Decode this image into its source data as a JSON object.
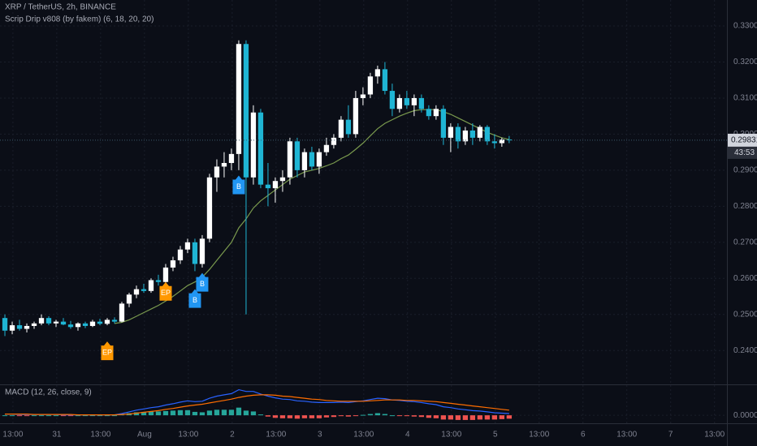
{
  "chart_data": {
    "type": "candlestick",
    "title": "XRP / TetherUS, 2h, BINANCE",
    "indicator": "Scrip Drip v808 (by fakem) (6, 18, 20, 20)",
    "up_color": "#ffffff",
    "down_color": "#1fb5d4",
    "ma_color": "#7a9a4e",
    "xlim": [
      -0.67,
      98.8
    ],
    "xticks": [
      {
        "value": 1.1,
        "label": "13:00"
      },
      {
        "value": 7.1,
        "label": "31"
      },
      {
        "value": 13.1,
        "label": "13:00"
      },
      {
        "value": 19.1,
        "label": "Aug"
      },
      {
        "value": 25.1,
        "label": "13:00"
      },
      {
        "value": 31.1,
        "label": "2"
      },
      {
        "value": 37.1,
        "label": "13:00"
      },
      {
        "value": 43.1,
        "label": "3"
      },
      {
        "value": 49.1,
        "label": "13:00"
      },
      {
        "value": 55.1,
        "label": "4"
      },
      {
        "value": 61.1,
        "label": "13:00"
      },
      {
        "value": 67.1,
        "label": "5"
      },
      {
        "value": 73.1,
        "label": "13:00"
      },
      {
        "value": 79.1,
        "label": "6"
      },
      {
        "value": 85.1,
        "label": "13:00"
      },
      {
        "value": 91.1,
        "label": "7"
      },
      {
        "value": 97.1,
        "label": "13:00"
      }
    ],
    "ylim": [
      0.2315,
      0.3372
    ],
    "yticks": [
      {
        "value": 0.24,
        "label": "0.24000"
      },
      {
        "value": 0.25,
        "label": "0.25000"
      },
      {
        "value": 0.26,
        "label": "0.26000"
      },
      {
        "value": 0.27,
        "label": "0.27000"
      },
      {
        "value": 0.28,
        "label": "0.28000"
      },
      {
        "value": 0.29,
        "label": "0.29000"
      },
      {
        "value": 0.3,
        "label": "0.30000"
      },
      {
        "value": 0.31,
        "label": "0.31000"
      },
      {
        "value": 0.32,
        "label": "0.32000"
      },
      {
        "value": 0.33,
        "label": "0.33000"
      }
    ],
    "ohlc": [
      [
        0.249,
        0.25,
        0.244,
        0.2455
      ],
      [
        0.2455,
        0.248,
        0.2445,
        0.247
      ],
      [
        0.247,
        0.2485,
        0.2455,
        0.246
      ],
      [
        0.246,
        0.2475,
        0.245,
        0.2468
      ],
      [
        0.2468,
        0.248,
        0.246,
        0.2475
      ],
      [
        0.2475,
        0.25,
        0.247,
        0.249
      ],
      [
        0.249,
        0.2495,
        0.247,
        0.2475
      ],
      [
        0.2475,
        0.2485,
        0.2465,
        0.248
      ],
      [
        0.248,
        0.249,
        0.247,
        0.2472
      ],
      [
        0.2472,
        0.2482,
        0.246,
        0.2465
      ],
      [
        0.2465,
        0.2478,
        0.2455,
        0.2475
      ],
      [
        0.2475,
        0.248,
        0.2462,
        0.2468
      ],
      [
        0.2468,
        0.2485,
        0.2465,
        0.248
      ],
      [
        0.248,
        0.2488,
        0.247,
        0.2474
      ],
      [
        0.2474,
        0.249,
        0.247,
        0.2485
      ],
      [
        0.2485,
        0.2492,
        0.2475,
        0.248
      ],
      [
        0.248,
        0.2535,
        0.2478,
        0.253
      ],
      [
        0.253,
        0.256,
        0.252,
        0.2555
      ],
      [
        0.2555,
        0.258,
        0.2545,
        0.257
      ],
      [
        0.257,
        0.2585,
        0.256,
        0.2565
      ],
      [
        0.2565,
        0.26,
        0.256,
        0.2595
      ],
      [
        0.2595,
        0.261,
        0.258,
        0.259
      ],
      [
        0.259,
        0.264,
        0.2585,
        0.263
      ],
      [
        0.263,
        0.266,
        0.262,
        0.265
      ],
      [
        0.265,
        0.269,
        0.264,
        0.268
      ],
      [
        0.268,
        0.271,
        0.267,
        0.27
      ],
      [
        0.27,
        0.271,
        0.262,
        0.264
      ],
      [
        0.264,
        0.272,
        0.263,
        0.271
      ],
      [
        0.271,
        0.289,
        0.27,
        0.288
      ],
      [
        0.288,
        0.293,
        0.284,
        0.291
      ],
      [
        0.291,
        0.295,
        0.288,
        0.292
      ],
      [
        0.292,
        0.296,
        0.29,
        0.2945
      ],
      [
        0.2945,
        0.326,
        0.29,
        0.325
      ],
      [
        0.325,
        0.326,
        0.25,
        0.288
      ],
      [
        0.288,
        0.308,
        0.286,
        0.306
      ],
      [
        0.306,
        0.307,
        0.285,
        0.286
      ],
      [
        0.286,
        0.292,
        0.28,
        0.285
      ],
      [
        0.285,
        0.288,
        0.281,
        0.287
      ],
      [
        0.287,
        0.29,
        0.284,
        0.288
      ],
      [
        0.288,
        0.299,
        0.286,
        0.298
      ],
      [
        0.298,
        0.299,
        0.288,
        0.29
      ],
      [
        0.29,
        0.296,
        0.288,
        0.295
      ],
      [
        0.295,
        0.2965,
        0.29,
        0.291
      ],
      [
        0.291,
        0.296,
        0.289,
        0.295
      ],
      [
        0.295,
        0.299,
        0.294,
        0.297
      ],
      [
        0.297,
        0.3,
        0.296,
        0.299
      ],
      [
        0.299,
        0.305,
        0.298,
        0.304
      ],
      [
        0.304,
        0.308,
        0.299,
        0.3
      ],
      [
        0.3,
        0.312,
        0.299,
        0.31
      ],
      [
        0.31,
        0.313,
        0.308,
        0.311
      ],
      [
        0.311,
        0.317,
        0.31,
        0.316
      ],
      [
        0.316,
        0.319,
        0.314,
        0.318
      ],
      [
        0.318,
        0.32,
        0.311,
        0.312
      ],
      [
        0.312,
        0.314,
        0.305,
        0.307
      ],
      [
        0.307,
        0.311,
        0.306,
        0.31
      ],
      [
        0.31,
        0.312,
        0.307,
        0.308
      ],
      [
        0.308,
        0.311,
        0.305,
        0.31
      ],
      [
        0.31,
        0.311,
        0.306,
        0.307
      ],
      [
        0.307,
        0.308,
        0.304,
        0.305
      ],
      [
        0.305,
        0.308,
        0.304,
        0.307
      ],
      [
        0.307,
        0.308,
        0.297,
        0.299
      ],
      [
        0.299,
        0.303,
        0.295,
        0.302
      ],
      [
        0.302,
        0.303,
        0.296,
        0.298
      ],
      [
        0.298,
        0.302,
        0.297,
        0.301
      ],
      [
        0.301,
        0.303,
        0.297,
        0.299
      ],
      [
        0.299,
        0.3025,
        0.298,
        0.302
      ],
      [
        0.302,
        0.3025,
        0.297,
        0.298
      ],
      [
        0.298,
        0.3,
        0.296,
        0.2975
      ],
      [
        0.2975,
        0.299,
        0.2965,
        0.2985
      ],
      [
        0.2985,
        0.2995,
        0.2975,
        0.2983
      ]
    ],
    "ma": [
      null,
      null,
      null,
      null,
      null,
      null,
      null,
      null,
      null,
      null,
      null,
      null,
      null,
      null,
      null,
      0.2475,
      0.2478,
      0.2485,
      0.2495,
      0.2505,
      0.2515,
      0.2525,
      0.2537,
      0.255,
      0.2565,
      0.258,
      0.259,
      0.2603,
      0.2625,
      0.265,
      0.2675,
      0.27,
      0.274,
      0.2765,
      0.2795,
      0.2815,
      0.283,
      0.2845,
      0.286,
      0.2875,
      0.2885,
      0.2895,
      0.29,
      0.2905,
      0.2912,
      0.292,
      0.2932,
      0.2942,
      0.2958,
      0.2975,
      0.2995,
      0.3015,
      0.303,
      0.304,
      0.305,
      0.3058,
      0.3065,
      0.3068,
      0.3068,
      0.3068,
      0.3062,
      0.3055,
      0.3045,
      0.3035,
      0.3025,
      0.3015,
      0.3005,
      0.2997,
      0.299,
      0.2985
    ],
    "signals": [
      {
        "label": "EP",
        "x": 14,
        "y": 0.2425,
        "color": "#ff9800"
      },
      {
        "label": "EP",
        "x": 22,
        "y": 0.259,
        "color": "#ff9800"
      },
      {
        "label": "B",
        "x": 26,
        "y": 0.257,
        "color": "#2196f3"
      },
      {
        "label": "B",
        "x": 27,
        "y": 0.2615,
        "color": "#2196f3"
      },
      {
        "label": "B",
        "x": 32,
        "y": 0.2885,
        "color": "#2196f3"
      }
    ],
    "last_price": 0.29831,
    "countdown": "43:53",
    "macd": {
      "title": "MACD (12, 26, close, 9)",
      "ylim": [
        -0.0015,
        0.0065
      ],
      "yticks": [
        {
          "value": 0,
          "label": "0.00000"
        }
      ],
      "macd_color": "#2962ff",
      "signal_color": "#ff6d00",
      "hist_up_color": "#26a69a",
      "hist_down_color": "#ef5350",
      "macd": [
        0.0003,
        0.0003,
        0.0002,
        0.0002,
        0.0002,
        0.0002,
        0.0002,
        0.0002,
        0.0001,
        0.0001,
        0.0001,
        0.0001,
        0.0001,
        0.0001,
        0.0001,
        0.0001,
        0.0004,
        0.0008,
        0.0012,
        0.0015,
        0.0018,
        0.002,
        0.0024,
        0.0027,
        0.0031,
        0.0034,
        0.0032,
        0.0033,
        0.004,
        0.0045,
        0.0048,
        0.0051,
        0.006,
        0.0056,
        0.0056,
        0.005,
        0.0045,
        0.0041,
        0.0038,
        0.0037,
        0.0034,
        0.0033,
        0.0031,
        0.003,
        0.003,
        0.003,
        0.0031,
        0.003,
        0.0032,
        0.0034,
        0.0037,
        0.004,
        0.0039,
        0.0036,
        0.0035,
        0.0033,
        0.0032,
        0.003,
        0.0027,
        0.0025,
        0.002,
        0.0018,
        0.0015,
        0.0013,
        0.0011,
        0.001,
        0.0008,
        0.0006,
        0.0005,
        0.0004
      ],
      "signal": [
        0.0003,
        0.0003,
        0.0003,
        0.0003,
        0.0002,
        0.0002,
        0.0002,
        0.0002,
        0.0002,
        0.0002,
        0.0001,
        0.0001,
        0.0001,
        0.0001,
        0.0001,
        0.0001,
        0.0002,
        0.0003,
        0.0005,
        0.0007,
        0.0009,
        0.0011,
        0.0014,
        0.0016,
        0.0019,
        0.0022,
        0.0024,
        0.0026,
        0.0029,
        0.0032,
        0.0035,
        0.0038,
        0.0042,
        0.0045,
        0.0047,
        0.0048,
        0.0048,
        0.0047,
        0.0045,
        0.0044,
        0.0042,
        0.004,
        0.0038,
        0.0037,
        0.0035,
        0.0034,
        0.0033,
        0.0033,
        0.0033,
        0.0033,
        0.0034,
        0.0035,
        0.0036,
        0.0036,
        0.0036,
        0.0035,
        0.0035,
        0.0034,
        0.0033,
        0.0032,
        0.003,
        0.0028,
        0.0026,
        0.0024,
        0.0022,
        0.002,
        0.0018,
        0.0016,
        0.0014,
        0.0012
      ],
      "hist": [
        0,
        0,
        -0.0001,
        -0.0001,
        0,
        0,
        0,
        0,
        -0.0001,
        -0.0001,
        0,
        0,
        0,
        0,
        0,
        0,
        0.0002,
        0.0005,
        0.0007,
        0.0008,
        0.0009,
        0.0009,
        0.001,
        0.0011,
        0.0012,
        0.0012,
        0.0008,
        0.0007,
        0.0011,
        0.0013,
        0.0013,
        0.0013,
        0.0018,
        0.0011,
        0.0009,
        0.0002,
        -0.0003,
        -0.0006,
        -0.0007,
        -0.0007,
        -0.0008,
        -0.0007,
        -0.0007,
        -0.0007,
        -0.0005,
        -0.0004,
        -0.0002,
        -0.0003,
        -0.0001,
        0.0001,
        0.0003,
        0.0005,
        0.0003,
        0,
        -0.0001,
        -0.0002,
        -0.0003,
        -0.0004,
        -0.0006,
        -0.0007,
        -0.001,
        -0.001,
        -0.0011,
        -0.0011,
        -0.0011,
        -0.001,
        -0.001,
        -0.001,
        -0.0009,
        -0.0008
      ]
    }
  }
}
